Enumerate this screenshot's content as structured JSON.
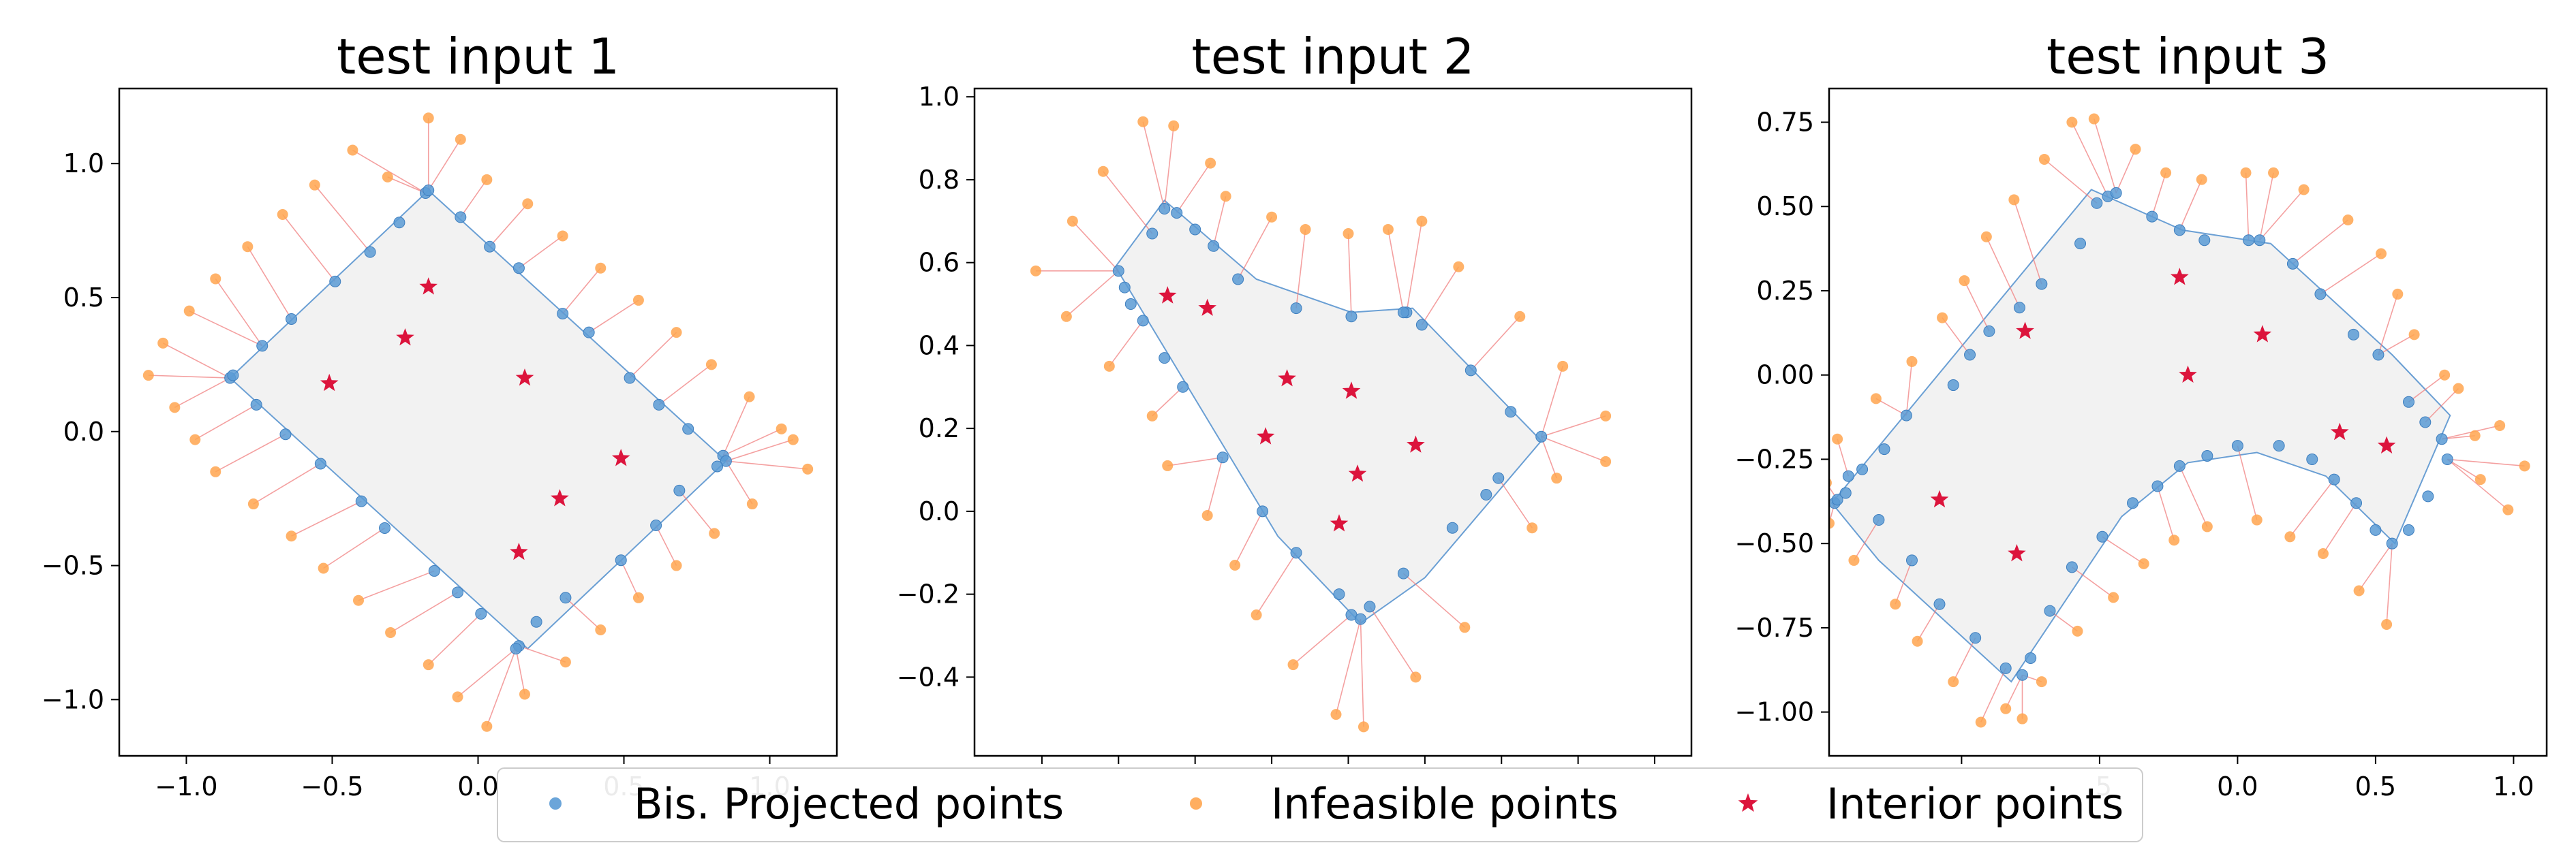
{
  "chart_data": [
    {
      "type": "scatter",
      "title": "test input 1",
      "xlabel": "",
      "ylabel": "",
      "xlim": [
        -1.23,
        1.23
      ],
      "ylim": [
        -1.21,
        1.28
      ],
      "xticks": [
        -1.0,
        -0.5,
        0.0,
        0.5,
        1.0
      ],
      "yticks": [
        -1.0,
        -0.5,
        0.0,
        0.5,
        1.0
      ],
      "xtick_labels": [
        "−1.0",
        "−0.5",
        "0.0",
        "0.5",
        "1.0"
      ],
      "ytick_labels": [
        "−1.0",
        "−0.5",
        "0.0",
        "0.5",
        "1.0"
      ],
      "region": [
        [
          -0.85,
          0.2
        ],
        [
          -0.17,
          0.9
        ],
        [
          0.85,
          -0.11
        ],
        [
          0.17,
          -0.81
        ]
      ],
      "projected": [
        [
          -0.85,
          0.2
        ],
        [
          -0.84,
          0.21
        ],
        [
          -0.74,
          0.32
        ],
        [
          -0.64,
          0.42
        ],
        [
          -0.49,
          0.56
        ],
        [
          -0.37,
          0.67
        ],
        [
          -0.27,
          0.78
        ],
        [
          -0.18,
          0.89
        ],
        [
          -0.17,
          0.9
        ],
        [
          -0.06,
          0.8
        ],
        [
          0.04,
          0.69
        ],
        [
          0.14,
          0.61
        ],
        [
          0.29,
          0.44
        ],
        [
          0.38,
          0.37
        ],
        [
          0.52,
          0.2
        ],
        [
          0.62,
          0.1
        ],
        [
          0.72,
          0.01
        ],
        [
          0.84,
          -0.09
        ],
        [
          0.85,
          -0.11
        ],
        [
          0.82,
          -0.13
        ],
        [
          0.69,
          -0.22
        ],
        [
          0.61,
          -0.35
        ],
        [
          0.49,
          -0.48
        ],
        [
          0.3,
          -0.62
        ],
        [
          0.2,
          -0.71
        ],
        [
          0.14,
          -0.8
        ],
        [
          0.13,
          -0.81
        ],
        [
          0.01,
          -0.68
        ],
        [
          -0.07,
          -0.6
        ],
        [
          -0.15,
          -0.52
        ],
        [
          -0.32,
          -0.36
        ],
        [
          -0.4,
          -0.26
        ],
        [
          -0.54,
          -0.12
        ],
        [
          -0.66,
          -0.01
        ],
        [
          -0.76,
          0.1
        ]
      ],
      "infeasible": [
        [
          -1.13,
          0.21
        ],
        [
          -1.08,
          0.33
        ],
        [
          -1.04,
          0.09
        ],
        [
          -0.99,
          0.45
        ],
        [
          -0.97,
          -0.03
        ],
        [
          -0.9,
          0.57
        ],
        [
          -0.9,
          -0.15
        ],
        [
          -0.79,
          0.69
        ],
        [
          -0.77,
          -0.27
        ],
        [
          -0.67,
          0.81
        ],
        [
          -0.64,
          -0.39
        ],
        [
          -0.56,
          0.92
        ],
        [
          -0.53,
          -0.51
        ],
        [
          -0.43,
          1.05
        ],
        [
          -0.41,
          -0.63
        ],
        [
          -0.31,
          0.95
        ],
        [
          -0.3,
          -0.75
        ],
        [
          -0.17,
          1.17
        ],
        [
          -0.17,
          -0.87
        ],
        [
          -0.06,
          1.09
        ],
        [
          -0.07,
          -0.99
        ],
        [
          0.03,
          0.94
        ],
        [
          0.03,
          -1.1
        ],
        [
          0.17,
          0.85
        ],
        [
          0.16,
          -0.98
        ],
        [
          0.29,
          0.73
        ],
        [
          0.3,
          -0.86
        ],
        [
          0.42,
          0.61
        ],
        [
          0.42,
          -0.74
        ],
        [
          0.55,
          0.49
        ],
        [
          0.55,
          -0.62
        ],
        [
          0.68,
          0.37
        ],
        [
          0.68,
          -0.5
        ],
        [
          0.8,
          0.25
        ],
        [
          0.81,
          -0.38
        ],
        [
          0.93,
          0.13
        ],
        [
          0.94,
          -0.27
        ],
        [
          1.04,
          0.01
        ],
        [
          1.08,
          -0.03
        ],
        [
          1.13,
          -0.14
        ]
      ],
      "interior": [
        [
          -0.17,
          0.54
        ],
        [
          -0.25,
          0.35
        ],
        [
          -0.51,
          0.18
        ],
        [
          0.16,
          0.2
        ],
        [
          0.49,
          -0.1
        ],
        [
          0.28,
          -0.25
        ],
        [
          0.14,
          -0.45
        ]
      ]
    },
    {
      "type": "scatter",
      "title": "test input 2",
      "xlabel": "",
      "ylabel": "",
      "xlim": [
        -0.72,
        1.62
      ],
      "ylim": [
        -0.59,
        1.02
      ],
      "xticks": [
        -0.5,
        -0.25,
        0.0,
        0.25,
        0.5,
        0.75,
        1.0,
        1.25,
        1.5
      ],
      "yticks": [
        -0.4,
        -0.2,
        0.0,
        0.2,
        0.4,
        0.6,
        0.8,
        1.0
      ],
      "ytick_labels": [
        "−0.4",
        "−0.2",
        "0.0",
        "0.2",
        "0.4",
        "0.6",
        "0.8",
        "1.0"
      ],
      "region": [
        [
          -0.26,
          0.59
        ],
        [
          -0.1,
          0.75
        ],
        [
          0.2,
          0.56
        ],
        [
          0.51,
          0.48
        ],
        [
          0.71,
          0.49
        ],
        [
          1.13,
          0.17
        ],
        [
          0.75,
          -0.16
        ],
        [
          0.54,
          -0.27
        ],
        [
          0.27,
          -0.06
        ],
        [
          -0.26,
          0.59
        ]
      ],
      "projected": [
        [
          -0.25,
          0.58
        ],
        [
          -0.23,
          0.54
        ],
        [
          -0.21,
          0.5
        ],
        [
          -0.17,
          0.46
        ],
        [
          -0.1,
          0.37
        ],
        [
          -0.04,
          0.3
        ],
        [
          0.09,
          0.13
        ],
        [
          0.22,
          0.0
        ],
        [
          0.33,
          -0.1
        ],
        [
          0.47,
          -0.2
        ],
        [
          0.51,
          -0.25
        ],
        [
          0.54,
          -0.26
        ],
        [
          0.57,
          -0.23
        ],
        [
          0.68,
          -0.15
        ],
        [
          0.84,
          -0.04
        ],
        [
          0.95,
          0.04
        ],
        [
          0.99,
          0.08
        ],
        [
          1.13,
          0.18
        ],
        [
          1.03,
          0.24
        ],
        [
          0.9,
          0.34
        ],
        [
          0.74,
          0.45
        ],
        [
          0.69,
          0.48
        ],
        [
          0.68,
          0.48
        ],
        [
          0.51,
          0.47
        ],
        [
          0.33,
          0.49
        ],
        [
          0.14,
          0.56
        ],
        [
          0.06,
          0.64
        ],
        [
          0.0,
          0.68
        ],
        [
          -0.06,
          0.72
        ],
        [
          -0.1,
          0.73
        ],
        [
          -0.14,
          0.67
        ]
      ],
      "infeasible": [
        [
          -0.52,
          0.58
        ],
        [
          -0.4,
          0.7
        ],
        [
          -0.42,
          0.47
        ],
        [
          -0.3,
          0.82
        ],
        [
          -0.28,
          0.35
        ],
        [
          -0.17,
          0.94
        ],
        [
          -0.14,
          0.23
        ],
        [
          -0.07,
          0.93
        ],
        [
          -0.09,
          0.11
        ],
        [
          0.05,
          0.84
        ],
        [
          0.04,
          -0.01
        ],
        [
          0.1,
          0.76
        ],
        [
          0.13,
          -0.13
        ],
        [
          0.25,
          0.71
        ],
        [
          0.2,
          -0.25
        ],
        [
          0.36,
          0.68
        ],
        [
          0.32,
          -0.37
        ],
        [
          0.5,
          0.67
        ],
        [
          0.46,
          -0.49
        ],
        [
          0.63,
          0.68
        ],
        [
          0.55,
          -0.52
        ],
        [
          0.74,
          0.7
        ],
        [
          0.72,
          -0.4
        ],
        [
          0.86,
          0.59
        ],
        [
          0.88,
          -0.28
        ],
        [
          1.06,
          0.47
        ],
        [
          1.1,
          -0.04
        ],
        [
          1.2,
          0.35
        ],
        [
          1.18,
          0.08
        ],
        [
          1.34,
          0.23
        ],
        [
          1.34,
          0.12
        ]
      ],
      "interior": [
        [
          -0.09,
          0.52
        ],
        [
          0.04,
          0.49
        ],
        [
          0.3,
          0.32
        ],
        [
          0.51,
          0.29
        ],
        [
          0.23,
          0.18
        ],
        [
          0.72,
          0.16
        ],
        [
          0.53,
          0.09
        ],
        [
          0.47,
          -0.03
        ]
      ]
    },
    {
      "type": "scatter",
      "title": "test input 3",
      "xlabel": "",
      "ylabel": "",
      "xlim": [
        -1.48,
        1.12
      ],
      "ylim": [
        -1.13,
        0.85
      ],
      "xticks": [
        -1.5,
        -1.0,
        -0.5,
        0.0,
        0.5,
        1.0
      ],
      "yticks": [
        -1.0,
        -0.75,
        -0.5,
        -0.25,
        0.0,
        0.25,
        0.5,
        0.75
      ],
      "xtick_labels": [
        "",
        "",
        ".5",
        "0.0",
        "0.5",
        "1.0"
      ],
      "ytick_labels": [
        "−1.00",
        "−0.75",
        "−0.50",
        "−0.25",
        "0.00",
        "0.25",
        "0.50",
        "0.75"
      ],
      "region": [
        [
          -1.47,
          -0.38
        ],
        [
          -0.53,
          0.55
        ],
        [
          -0.2,
          0.43
        ],
        [
          0.12,
          0.39
        ],
        [
          0.56,
          0.06
        ],
        [
          0.77,
          -0.12
        ],
        [
          0.57,
          -0.5
        ],
        [
          0.32,
          -0.3
        ],
        [
          0.07,
          -0.23
        ],
        [
          -0.18,
          -0.26
        ],
        [
          -0.42,
          -0.42
        ],
        [
          -0.82,
          -0.91
        ],
        [
          -1.3,
          -0.55
        ],
        [
          -1.47,
          -0.38
        ]
      ],
      "projected": [
        [
          -1.46,
          -0.38
        ],
        [
          -1.45,
          -0.37
        ],
        [
          -1.42,
          -0.35
        ],
        [
          -1.36,
          -0.28
        ],
        [
          -1.28,
          -0.22
        ],
        [
          -1.2,
          -0.12
        ],
        [
          -1.03,
          -0.03
        ],
        [
          -0.97,
          0.06
        ],
        [
          -0.9,
          0.13
        ],
        [
          -0.79,
          0.2
        ],
        [
          -0.71,
          0.27
        ],
        [
          -0.57,
          0.39
        ],
        [
          -0.51,
          0.51
        ],
        [
          -0.47,
          0.53
        ],
        [
          -0.44,
          0.54
        ],
        [
          -0.31,
          0.47
        ],
        [
          -0.21,
          0.43
        ],
        [
          -0.12,
          0.4
        ],
        [
          0.04,
          0.4
        ],
        [
          0.08,
          0.4
        ],
        [
          0.2,
          0.33
        ],
        [
          0.3,
          0.24
        ],
        [
          0.42,
          0.12
        ],
        [
          0.51,
          0.06
        ],
        [
          0.62,
          -0.08
        ],
        [
          0.68,
          -0.14
        ],
        [
          0.74,
          -0.19
        ],
        [
          0.76,
          -0.25
        ],
        [
          0.69,
          -0.36
        ],
        [
          0.62,
          -0.46
        ],
        [
          0.56,
          -0.5
        ],
        [
          0.5,
          -0.46
        ],
        [
          0.43,
          -0.38
        ],
        [
          0.35,
          -0.31
        ],
        [
          0.27,
          -0.25
        ],
        [
          0.15,
          -0.21
        ],
        [
          0.0,
          -0.21
        ],
        [
          -0.11,
          -0.24
        ],
        [
          -0.21,
          -0.27
        ],
        [
          -0.29,
          -0.33
        ],
        [
          -0.38,
          -0.38
        ],
        [
          -0.49,
          -0.48
        ],
        [
          -0.6,
          -0.57
        ],
        [
          -0.68,
          -0.7
        ],
        [
          -0.75,
          -0.84
        ],
        [
          -0.78,
          -0.89
        ],
        [
          -0.84,
          -0.87
        ],
        [
          -0.95,
          -0.78
        ],
        [
          -1.08,
          -0.68
        ],
        [
          -1.18,
          -0.55
        ],
        [
          -1.3,
          -0.43
        ],
        [
          -1.41,
          -0.3
        ]
      ],
      "infeasible": [
        [
          -1.49,
          -0.32
        ],
        [
          -1.48,
          -0.44
        ],
        [
          -1.45,
          -0.19
        ],
        [
          -1.39,
          -0.55
        ],
        [
          -1.31,
          -0.07
        ],
        [
          -1.24,
          -0.68
        ],
        [
          -1.18,
          0.04
        ],
        [
          -1.16,
          -0.79
        ],
        [
          -1.07,
          0.17
        ],
        [
          -1.03,
          -0.91
        ],
        [
          -0.99,
          0.28
        ],
        [
          -0.93,
          -1.03
        ],
        [
          -0.91,
          0.41
        ],
        [
          -0.84,
          -0.99
        ],
        [
          -0.81,
          0.52
        ],
        [
          -0.78,
          -1.02
        ],
        [
          -0.7,
          0.64
        ],
        [
          -0.71,
          -0.91
        ],
        [
          -0.6,
          0.75
        ],
        [
          -0.58,
          -0.76
        ],
        [
          -0.52,
          0.76
        ],
        [
          -0.45,
          -0.66
        ],
        [
          -0.37,
          0.67
        ],
        [
          -0.34,
          -0.56
        ],
        [
          -0.26,
          0.6
        ],
        [
          -0.23,
          -0.49
        ],
        [
          -0.13,
          0.58
        ],
        [
          -0.11,
          -0.45
        ],
        [
          0.03,
          0.6
        ],
        [
          0.07,
          -0.43
        ],
        [
          0.13,
          0.6
        ],
        [
          0.19,
          -0.48
        ],
        [
          0.24,
          0.55
        ],
        [
          0.31,
          -0.53
        ],
        [
          0.4,
          0.46
        ],
        [
          0.44,
          -0.64
        ],
        [
          0.52,
          0.36
        ],
        [
          0.54,
          -0.74
        ],
        [
          0.58,
          0.24
        ],
        [
          0.64,
          0.12
        ],
        [
          0.75,
          0.0
        ],
        [
          0.8,
          -0.04
        ],
        [
          0.86,
          -0.18
        ],
        [
          0.88,
          -0.31
        ],
        [
          0.95,
          -0.15
        ],
        [
          1.04,
          -0.27
        ],
        [
          0.98,
          -0.4
        ]
      ],
      "interior": [
        [
          -0.77,
          0.13
        ],
        [
          -0.21,
          0.29
        ],
        [
          0.09,
          0.12
        ],
        [
          -0.18,
          0.0
        ],
        [
          0.37,
          -0.17
        ],
        [
          0.54,
          -0.21
        ],
        [
          -1.08,
          -0.37
        ],
        [
          -0.8,
          -0.53
        ]
      ]
    }
  ],
  "legend": {
    "items": [
      {
        "key": "projected",
        "label": "Bis. Projected points",
        "color": "#5b9bd5",
        "marker": "circle"
      },
      {
        "key": "infeasible",
        "label": "Infeasible points",
        "color": "#ffa54f",
        "marker": "circle"
      },
      {
        "key": "interior",
        "label": "Interior points",
        "color": "#dc143c",
        "marker": "star"
      }
    ]
  },
  "colors": {
    "region_fill": "#f2f2f2",
    "boundary": "#6a9fd4",
    "projection_link": "#f08080"
  }
}
